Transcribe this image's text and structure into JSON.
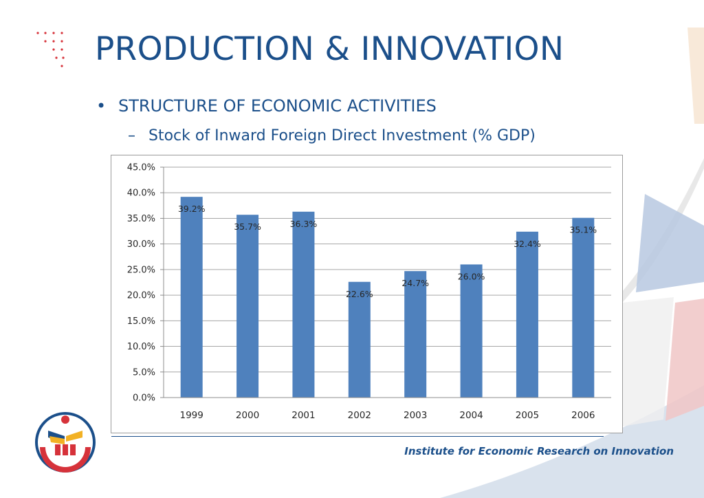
{
  "slide": {
    "title": "PRODUCTION & INNOVATION",
    "bullet": "STRUCTURE OF ECONOMIC ACTIVITIES",
    "sub_bullet": "Stock of Inward Foreign Direct Investment (% GDP)",
    "bullet_mark": "•",
    "sub_bullet_mark": "–",
    "footer": "Institute for Economic Research on Innovation"
  },
  "colors": {
    "title": "#1b4f8a",
    "bar": "#4f81bd",
    "accent_red": "#d6323a",
    "accent_blue": "#1b4f8a"
  },
  "icons": {
    "logo": "institute-logo",
    "dots": "red-dot-grid"
  },
  "chart_data": {
    "type": "bar",
    "title": "",
    "xlabel": "",
    "ylabel": "",
    "categories": [
      "1999",
      "2000",
      "2001",
      "2002",
      "2003",
      "2004",
      "2005",
      "2006"
    ],
    "values": [
      39.2,
      35.7,
      36.3,
      22.6,
      24.7,
      26.0,
      32.4,
      35.1
    ],
    "data_labels": [
      "39.2%",
      "35.7%",
      "36.3%",
      "22.6%",
      "24.7%",
      "26.0%",
      "32.4%",
      "35.1%"
    ],
    "ylim": [
      0,
      45
    ],
    "yticks": [
      0,
      5,
      10,
      15,
      20,
      25,
      30,
      35,
      40,
      45
    ],
    "ytick_labels": [
      "0.0%",
      "5.0%",
      "10.0%",
      "15.0%",
      "20.0%",
      "25.0%",
      "30.0%",
      "35.0%",
      "40.0%",
      "45.0%"
    ],
    "grid": true,
    "legend": "none"
  }
}
